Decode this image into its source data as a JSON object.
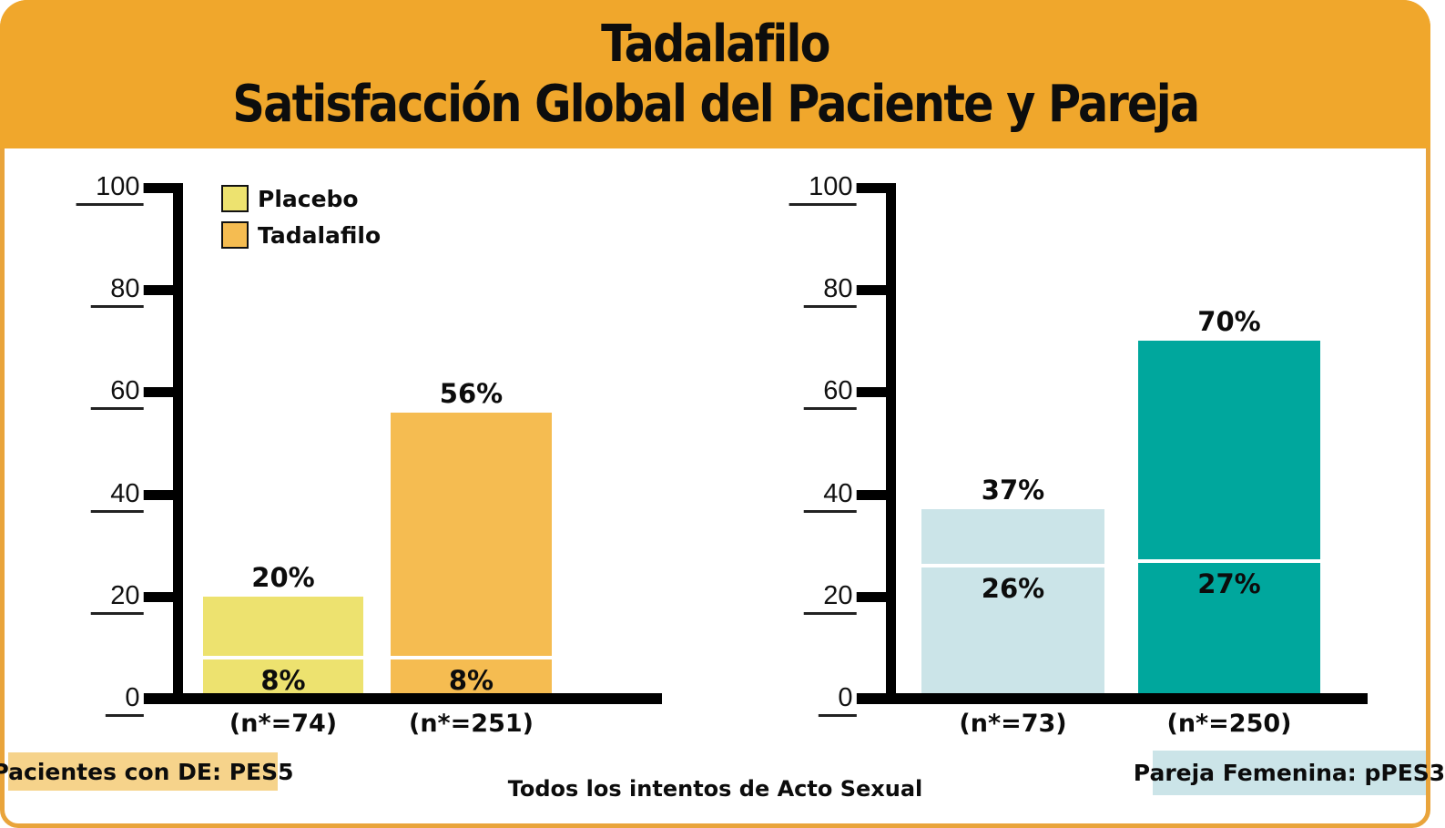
{
  "header": {
    "title_line1": "Tadalafilo",
    "title_line2": "Satisfacción Global del Paciente y Pareja",
    "bg_color": "#f0a72c",
    "border_color": "#e9a43b",
    "text_color": "#0d0d0d"
  },
  "legend": {
    "items": [
      {
        "label": "Placebo",
        "color": "#ede26f"
      },
      {
        "label": "Tadalafilo",
        "color": "#f5bc51"
      }
    ]
  },
  "chart_data": [
    {
      "type": "bar",
      "title": "Pacientes con DE: PES5",
      "xlabel": "",
      "ylabel": "",
      "ylim": [
        0,
        100
      ],
      "yticks": [
        0,
        20,
        40,
        60,
        80,
        100
      ],
      "grid": false,
      "legend_position": "top-left-inside",
      "categories": [
        "(n*=74)",
        "(n*=251)"
      ],
      "series": [
        {
          "name": "Placebo",
          "category": "(n*=74)",
          "total": 20,
          "total_label": "20%",
          "lower_segment": 8,
          "segment_label": "8%",
          "color": "#ede26f"
        },
        {
          "name": "Tadalafilo",
          "category": "(n*=251)",
          "total": 56,
          "total_label": "56%",
          "lower_segment": 8,
          "segment_label": "8%",
          "color": "#f5bc51"
        }
      ]
    },
    {
      "type": "bar",
      "title": "Pareja Femenina: pPES3",
      "xlabel": "",
      "ylabel": "",
      "ylim": [
        0,
        100
      ],
      "yticks": [
        0,
        20,
        40,
        60,
        80,
        100
      ],
      "grid": false,
      "legend_position": "none",
      "categories": [
        "(n*=73)",
        "(n*=250)"
      ],
      "series": [
        {
          "name": "Placebo",
          "category": "(n*=73)",
          "total": 37,
          "total_label": "37%",
          "lower_segment": 26,
          "segment_label": "26%",
          "color": "#cbe4e8"
        },
        {
          "name": "Tadalafilo",
          "category": "(n*=250)",
          "total": 70,
          "total_label": "70%",
          "lower_segment": 27,
          "segment_label": "27%",
          "color": "#00a79d"
        }
      ]
    }
  ],
  "footer": {
    "left_tag": {
      "label": "Pacientes con DE: PES5",
      "bg": "#f6d38b"
    },
    "center_note": "Todos los intentos de Acto Sexual",
    "right_tag": {
      "label": "Pareja Femenina: pPES3",
      "bg": "#cbe4e8"
    }
  }
}
